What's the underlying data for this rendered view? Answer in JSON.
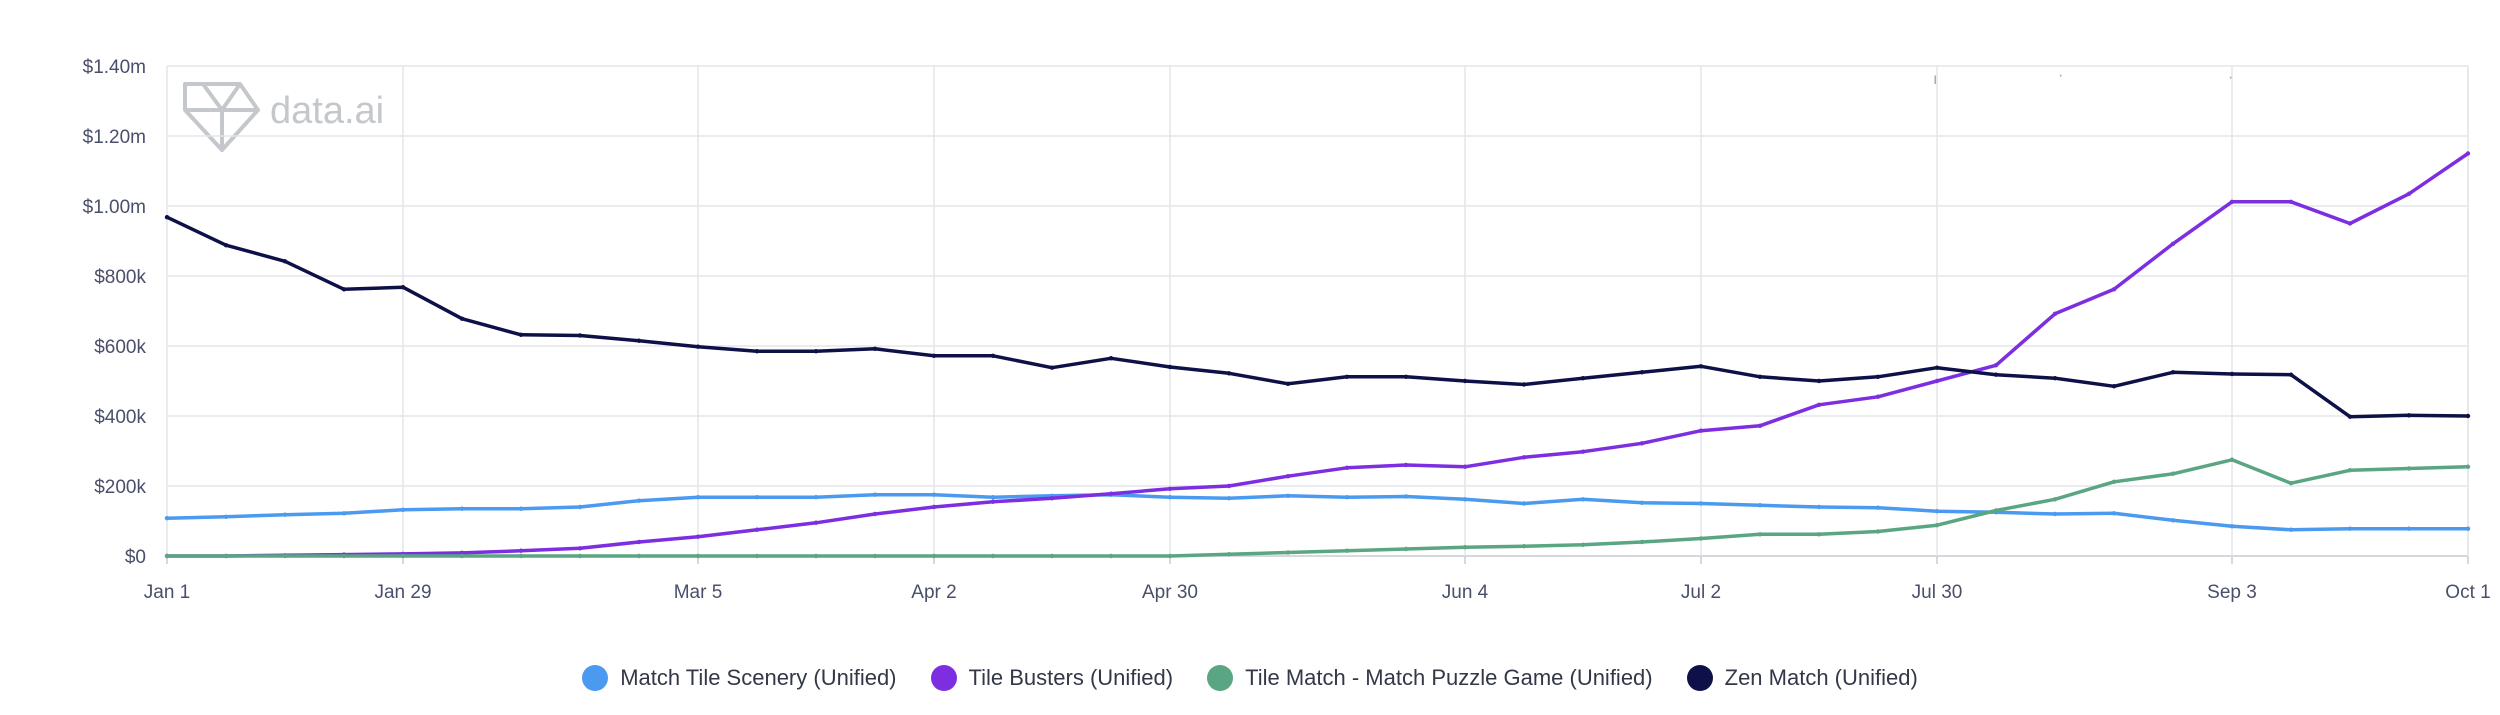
{
  "chart_data": {
    "type": "line",
    "title": "",
    "xlabel": "",
    "ylabel": "",
    "ylim": [
      0,
      1400000
    ],
    "yticks": [
      {
        "value": 0,
        "label": "$0"
      },
      {
        "value": 200000,
        "label": "$200k"
      },
      {
        "value": 400000,
        "label": "$400k"
      },
      {
        "value": 600000,
        "label": "$600k"
      },
      {
        "value": 800000,
        "label": "$800k"
      },
      {
        "value": 1000000,
        "label": "$1.00m"
      },
      {
        "value": 1200000,
        "label": "$1.20m"
      },
      {
        "value": 1400000,
        "label": "$1.40m"
      }
    ],
    "x_points": 40,
    "xticks": [
      {
        "index": 0,
        "label": "Jan 1"
      },
      {
        "index": 4,
        "label": "Jan 29"
      },
      {
        "index": 9,
        "label": "Mar 5"
      },
      {
        "index": 13,
        "label": "Apr 2"
      },
      {
        "index": 17,
        "label": "Apr 30"
      },
      {
        "index": 22,
        "label": "Jun 4"
      },
      {
        "index": 26,
        "label": "Jul 2"
      },
      {
        "index": 30,
        "label": "Jul 30"
      },
      {
        "index": 35,
        "label": "Sep 3"
      },
      {
        "index": 39,
        "label": "Oct 1"
      }
    ],
    "legend_position": "bottom-center",
    "grid": true,
    "series": [
      {
        "name": "Match Tile Scenery (Unified)",
        "color": "#4a9af0",
        "values": [
          108000,
          112000,
          118000,
          122000,
          132000,
          135000,
          135000,
          140000,
          158000,
          168000,
          168000,
          168000,
          175000,
          175000,
          168000,
          172000,
          175000,
          168000,
          165000,
          172000,
          168000,
          170000,
          162000,
          150000,
          162000,
          152000,
          150000,
          145000,
          140000,
          138000,
          128000,
          125000,
          120000,
          122000,
          102000,
          85000,
          75000,
          78000,
          78000,
          78000
        ]
      },
      {
        "name": "Tile Busters (Unified)",
        "color": "#7d2ee0",
        "values": [
          0,
          0,
          2000,
          4000,
          6000,
          9000,
          15000,
          22000,
          40000,
          55000,
          75000,
          95000,
          120000,
          140000,
          155000,
          165000,
          178000,
          192000,
          200000,
          228000,
          252000,
          260000,
          255000,
          282000,
          298000,
          322000,
          358000,
          372000,
          432000,
          455000,
          500000,
          545000,
          692000,
          762000,
          892000,
          1012000,
          1012000,
          950000,
          1035000,
          1150000
        ]
      },
      {
        "name": "Tile Match - Match Puzzle Game (Unified)",
        "color": "#5ba682",
        "values": [
          0,
          0,
          0,
          0,
          0,
          0,
          0,
          0,
          0,
          0,
          0,
          0,
          0,
          0,
          0,
          0,
          0,
          0,
          5000,
          10000,
          15000,
          20000,
          25000,
          28000,
          32000,
          40000,
          50000,
          62000,
          62000,
          70000,
          88000,
          130000,
          162000,
          212000,
          235000,
          275000,
          208000,
          245000,
          250000,
          255000
        ]
      },
      {
        "name": "Zen Match (Unified)",
        "color": "#0e1147",
        "values": [
          968000,
          888000,
          842000,
          762000,
          768000,
          678000,
          632000,
          630000,
          615000,
          598000,
          585000,
          585000,
          592000,
          572000,
          572000,
          538000,
          565000,
          540000,
          522000,
          492000,
          512000,
          512000,
          500000,
          490000,
          508000,
          525000,
          542000,
          512000,
          500000,
          512000,
          538000,
          518000,
          508000,
          485000,
          525000,
          520000,
          518000,
          398000,
          402000,
          400000
        ]
      }
    ]
  },
  "branding": {
    "watermark": "data.ai"
  },
  "annotations": {
    "top_right_marks": [
      "ı",
      "·",
      "·"
    ]
  }
}
